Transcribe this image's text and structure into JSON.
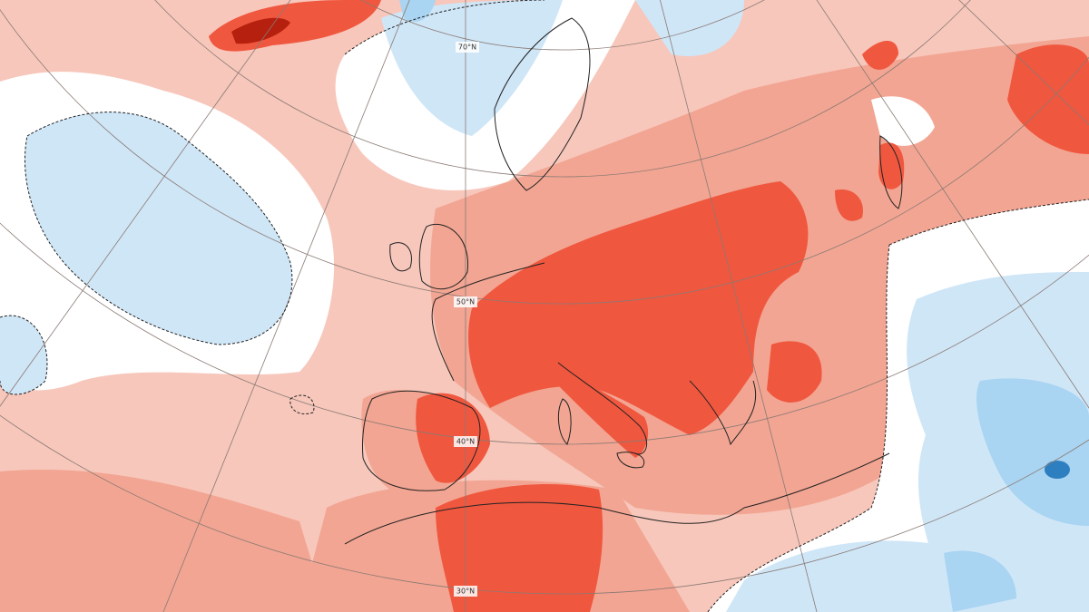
{
  "map": {
    "latitude_labels": [
      "70°N",
      "50°N",
      "40°N",
      "30°N"
    ]
  }
}
